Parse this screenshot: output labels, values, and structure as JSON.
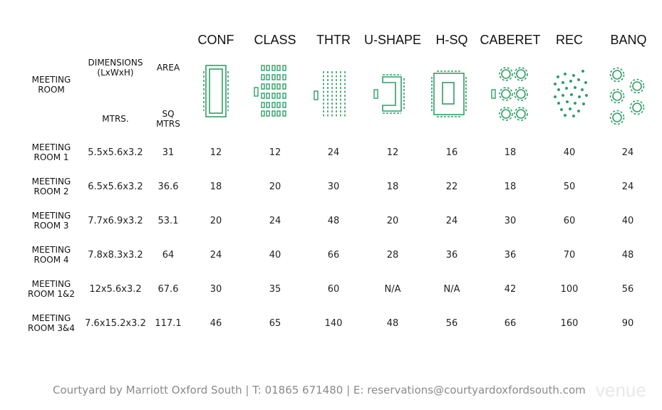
{
  "header": {
    "meeting_room": [
      "MEETING",
      "ROOM"
    ],
    "dimensions": [
      "DIMENSIONS",
      "(LxWxH)"
    ],
    "area": "AREA",
    "mtrs": "MTRS.",
    "sq_mtrs": [
      "SQ",
      "MTRS"
    ]
  },
  "layouts": [
    {
      "label": "CONF",
      "icon": "conference-layout-icon"
    },
    {
      "label": "CLASS",
      "icon": "classroom-layout-icon"
    },
    {
      "label": "THTR",
      "icon": "theatre-layout-icon"
    },
    {
      "label": "U-SHAPE",
      "icon": "u-shape-layout-icon"
    },
    {
      "label": "H-SQ",
      "icon": "hollow-square-layout-icon"
    },
    {
      "label": "CABERET",
      "icon": "cabaret-layout-icon"
    },
    {
      "label": "REC",
      "icon": "reception-layout-icon"
    },
    {
      "label": "BANQ",
      "icon": "banquet-layout-icon"
    }
  ],
  "rows": [
    {
      "name": [
        "MEETING",
        "ROOM 1"
      ],
      "dims": "5.5x5.6x3.2",
      "area": "31",
      "values": [
        "12",
        "12",
        "24",
        "12",
        "16",
        "18",
        "40",
        "24"
      ]
    },
    {
      "name": [
        "MEETING",
        "ROOM 2"
      ],
      "dims": "6.5x5.6x3.2",
      "area": "36.6",
      "values": [
        "18",
        "20",
        "30",
        "18",
        "22",
        "18",
        "50",
        "24"
      ]
    },
    {
      "name": [
        "MEETING",
        "ROOM 3"
      ],
      "dims": "7.7x6.9x3.2",
      "area": "53.1",
      "values": [
        "20",
        "24",
        "48",
        "20",
        "24",
        "30",
        "60",
        "40"
      ]
    },
    {
      "name": [
        "MEETING",
        "ROOM 4"
      ],
      "dims": "7.8x8.3x3.2",
      "area": "64",
      "values": [
        "24",
        "40",
        "66",
        "28",
        "36",
        "36",
        "70",
        "48"
      ]
    },
    {
      "name": [
        "MEETING",
        "ROOM 1&2"
      ],
      "dims": "12x5.6x3.2",
      "area": "67.6",
      "values": [
        "30",
        "35",
        "60",
        "N/A",
        "N/A",
        "42",
        "100",
        "56"
      ]
    },
    {
      "name": [
        "MEETING",
        "ROOM 3&4"
      ],
      "dims": "7.6x15.2x3.2",
      "area": "117.1",
      "values": [
        "46",
        "65",
        "140",
        "48",
        "56",
        "66",
        "160",
        "90"
      ]
    }
  ],
  "footer": {
    "text": "Courtyard by Marriott Oxford South | T: 01865 671480 | E: reservations@courtyardoxfordsouth.com"
  },
  "watermark": "venue",
  "colors": {
    "icon": "#2e9e66",
    "footer": "#8a8a8a"
  }
}
